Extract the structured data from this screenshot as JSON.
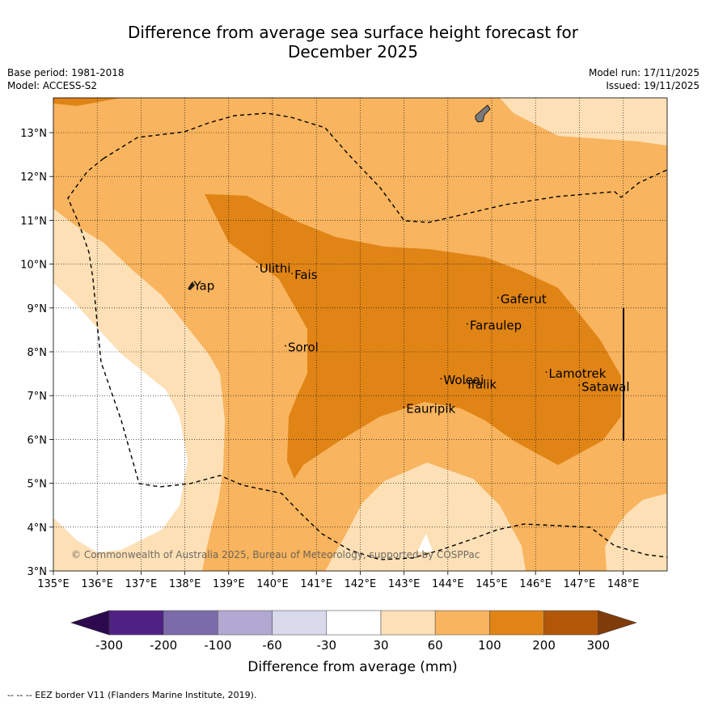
{
  "header": {
    "title_line1": "Difference from average sea surface height forecast for",
    "title_line2": "December 2025",
    "base_period": "Base period: 1981-2018",
    "model": "Model: ACCESS-S2",
    "model_run": "Model run: 17/11/2025",
    "issued": "Issued: 19/11/2025"
  },
  "chart_data": {
    "type": "heatmap",
    "title": "Difference from average sea surface height forecast for December 2025",
    "x_axis": {
      "range": [
        135,
        149
      ],
      "ticks": [
        "135°E",
        "136°E",
        "137°E",
        "138°E",
        "139°E",
        "140°E",
        "141°E",
        "142°E",
        "143°E",
        "144°E",
        "145°E",
        "146°E",
        "147°E",
        "148°E"
      ]
    },
    "y_axis": {
      "range": [
        3,
        13.8
      ],
      "ticks": [
        "3°N",
        "4°N",
        "5°N",
        "6°N",
        "7°N",
        "8°N",
        "9°N",
        "10°N",
        "11°N",
        "12°N",
        "13°N"
      ]
    },
    "regions": [
      {
        "category": "60 to 100",
        "description": "background across most of the map"
      },
      {
        "category": "100 to 200",
        "description": "central band from near Ulithi east to Satawal, 5°N to 11.6°N"
      },
      {
        "category": "30 to 60",
        "description": "western edge west of 139°E, southern patches near 143-145°E, north-east corner"
      },
      {
        "category": "-30 to 30",
        "description": "south-west corner west of 138°E below 9.5°N"
      }
    ],
    "places": [
      {
        "name": "Yap",
        "lon": 138.2,
        "lat": 9.5
      },
      {
        "name": "Ulithi",
        "lon": 139.7,
        "lat": 9.9
      },
      {
        "name": "Fais",
        "lon": 140.5,
        "lat": 9.75
      },
      {
        "name": "Sorol",
        "lon": 140.35,
        "lat": 8.1
      },
      {
        "name": "Woleai",
        "lon": 143.9,
        "lat": 7.35
      },
      {
        "name": "Ifalik",
        "lon": 144.45,
        "lat": 7.25
      },
      {
        "name": "Eauripik",
        "lon": 143.05,
        "lat": 6.7
      },
      {
        "name": "Gaferut",
        "lon": 145.2,
        "lat": 9.2
      },
      {
        "name": "Faraulep",
        "lon": 144.5,
        "lat": 8.6
      },
      {
        "name": "Lamotrek",
        "lon": 146.3,
        "lat": 7.5
      },
      {
        "name": "Satawal",
        "lon": 147.05,
        "lat": 7.2
      }
    ],
    "legend": {
      "colorbar_label": "Difference from average (mm)",
      "tick_labels": [
        "-300",
        "-200",
        "-100",
        "-60",
        "-30",
        "30",
        "60",
        "100",
        "200",
        "300"
      ],
      "bins": [
        {
          "range": "< -300",
          "color": "#2d0a4e"
        },
        {
          "range": "-300 to -200",
          "color": "#4f2184"
        },
        {
          "range": "-200 to -100",
          "color": "#7b6ca9"
        },
        {
          "range": "-100 to -60",
          "color": "#b1a9d2"
        },
        {
          "range": "-60 to -30",
          "color": "#d9d9ec"
        },
        {
          "range": "-30 to 30",
          "color": "#ffffff"
        },
        {
          "range": "30 to 60",
          "color": "#fde0b6"
        },
        {
          "range": "60 to 100",
          "color": "#f8b45e"
        },
        {
          "range": "100 to 200",
          "color": "#e08416"
        },
        {
          "range": "200 to 300",
          "color": "#b25707"
        },
        {
          "range": "> 300",
          "color": "#7f3b0a"
        }
      ]
    },
    "credit": "© Commonwealth of Australia 2025, Bureau of Meteorology, supported by COSPPac",
    "eez_note": "-- -- -- EEZ border V11 (Flanders Marine Institute, 2019)."
  },
  "colors": {
    "band_100_200": "#e08416",
    "band_60_100": "#f8b45e",
    "band_30_60": "#fde0b6",
    "band_neutral": "#ffffff",
    "land": "#7a7a7a"
  }
}
